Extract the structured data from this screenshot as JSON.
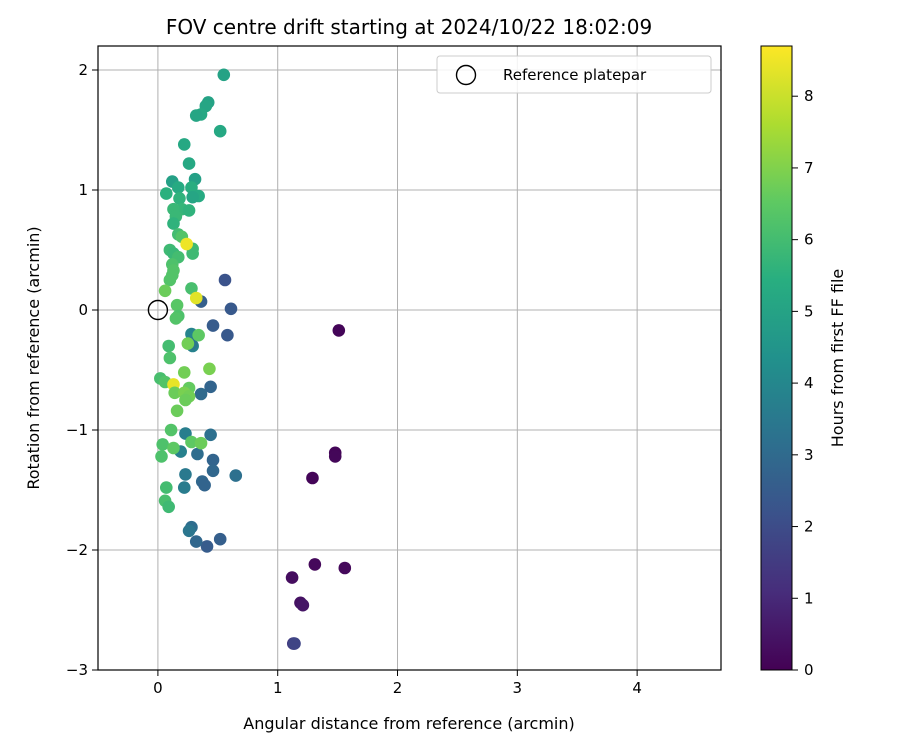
{
  "chart_data": {
    "type": "scatter",
    "title": "FOV centre drift starting at 2024/10/22 18:02:09",
    "xlabel": "Angular distance from reference (arcmin)",
    "ylabel": "Rotation from reference (arcmin)",
    "xlim": [
      -0.5,
      4.7
    ],
    "ylim": [
      -3.0,
      2.2
    ],
    "xticks": [
      0,
      1,
      2,
      3,
      4
    ],
    "xtick_labels": [
      "0",
      "1",
      "2",
      "3",
      "4"
    ],
    "yticks": [
      -3,
      -2,
      -1,
      0,
      1,
      2
    ],
    "ytick_labels": [
      "−3",
      "−2",
      "−1",
      "0",
      "1",
      "2"
    ],
    "grid": true,
    "legend": {
      "position": "top-right",
      "entries": [
        {
          "label": "Reference platepar",
          "marker": "open-circle"
        }
      ]
    },
    "reference_point": {
      "x": 0,
      "y": 0
    },
    "colorbar": {
      "label": "Hours from first FF file",
      "colormap": "viridis",
      "range": [
        0,
        8.7
      ],
      "ticks": [
        0,
        1,
        2,
        3,
        4,
        5,
        6,
        7,
        8
      ],
      "tick_labels": [
        "0",
        "1",
        "2",
        "3",
        "4",
        "5",
        "6",
        "7",
        "8"
      ]
    },
    "points": [
      {
        "x": 1.51,
        "y": -0.17,
        "c": 0.1
      },
      {
        "x": 1.48,
        "y": -1.19,
        "c": 0.1
      },
      {
        "x": 1.48,
        "y": -1.22,
        "c": 0.15
      },
      {
        "x": 1.29,
        "y": -1.4,
        "c": 0.1
      },
      {
        "x": 1.31,
        "y": -2.12,
        "c": 0.2
      },
      {
        "x": 1.56,
        "y": -2.15,
        "c": 0.2
      },
      {
        "x": 1.12,
        "y": -2.23,
        "c": 0.3
      },
      {
        "x": 1.19,
        "y": -2.44,
        "c": 0.4
      },
      {
        "x": 1.21,
        "y": -2.46,
        "c": 0.5
      },
      {
        "x": 1.13,
        "y": -2.78,
        "c": 1.5
      },
      {
        "x": 1.14,
        "y": -2.78,
        "c": 1.8
      },
      {
        "x": 0.56,
        "y": 0.25,
        "c": 2.2
      },
      {
        "x": 0.61,
        "y": 0.01,
        "c": 2.4
      },
      {
        "x": 0.46,
        "y": -0.13,
        "c": 2.5
      },
      {
        "x": 0.58,
        "y": -0.21,
        "c": 2.4
      },
      {
        "x": 0.36,
        "y": 0.07,
        "c": 2.6
      },
      {
        "x": 0.44,
        "y": -0.64,
        "c": 2.8
      },
      {
        "x": 0.36,
        "y": -0.7,
        "c": 3.0
      },
      {
        "x": 0.44,
        "y": -1.04,
        "c": 3.2
      },
      {
        "x": 0.46,
        "y": -1.25,
        "c": 2.8
      },
      {
        "x": 0.46,
        "y": -1.34,
        "c": 2.9
      },
      {
        "x": 0.65,
        "y": -1.38,
        "c": 3.2
      },
      {
        "x": 0.37,
        "y": -1.43,
        "c": 2.9
      },
      {
        "x": 0.39,
        "y": -1.46,
        "c": 2.8
      },
      {
        "x": 0.33,
        "y": -1.2,
        "c": 3.1
      },
      {
        "x": 0.52,
        "y": -1.91,
        "c": 2.6
      },
      {
        "x": 0.41,
        "y": -1.97,
        "c": 2.5
      },
      {
        "x": 0.32,
        "y": -1.93,
        "c": 2.9
      },
      {
        "x": 0.28,
        "y": -1.81,
        "c": 3.1
      },
      {
        "x": 0.26,
        "y": -1.84,
        "c": 3.4
      },
      {
        "x": 0.23,
        "y": -1.37,
        "c": 3.5
      },
      {
        "x": 0.22,
        "y": -1.48,
        "c": 3.6
      },
      {
        "x": 0.23,
        "y": -1.03,
        "c": 3.7
      },
      {
        "x": 0.19,
        "y": -1.18,
        "c": 3.8
      },
      {
        "x": 0.29,
        "y": -0.3,
        "c": 3.8
      },
      {
        "x": 0.28,
        "y": -0.2,
        "c": 3.9
      },
      {
        "x": 0.28,
        "y": -0.28,
        "c": 3.4
      },
      {
        "x": 0.55,
        "y": 1.96,
        "c": 5.0
      },
      {
        "x": 0.42,
        "y": 1.73,
        "c": 5.0
      },
      {
        "x": 0.4,
        "y": 1.7,
        "c": 5.1
      },
      {
        "x": 0.36,
        "y": 1.63,
        "c": 5.2
      },
      {
        "x": 0.32,
        "y": 1.62,
        "c": 5.1
      },
      {
        "x": 0.52,
        "y": 1.49,
        "c": 5.2
      },
      {
        "x": 0.22,
        "y": 1.38,
        "c": 5.2
      },
      {
        "x": 0.26,
        "y": 1.22,
        "c": 5.2
      },
      {
        "x": 0.31,
        "y": 1.09,
        "c": 4.9
      },
      {
        "x": 0.12,
        "y": 1.07,
        "c": 4.9
      },
      {
        "x": 0.17,
        "y": 1.02,
        "c": 5.3
      },
      {
        "x": 0.28,
        "y": 1.02,
        "c": 5.4
      },
      {
        "x": 0.07,
        "y": 0.97,
        "c": 5.5
      },
      {
        "x": 0.34,
        "y": 0.95,
        "c": 5.3
      },
      {
        "x": 0.29,
        "y": 0.94,
        "c": 5.1
      },
      {
        "x": 0.18,
        "y": 0.93,
        "c": 5.6
      },
      {
        "x": 0.2,
        "y": 0.84,
        "c": 5.7
      },
      {
        "x": 0.26,
        "y": 0.83,
        "c": 5.6
      },
      {
        "x": 0.13,
        "y": 0.84,
        "c": 5.8
      },
      {
        "x": 0.15,
        "y": 0.78,
        "c": 5.8
      },
      {
        "x": 0.13,
        "y": 0.72,
        "c": 5.6
      },
      {
        "x": 0.17,
        "y": 0.63,
        "c": 6.0
      },
      {
        "x": 0.2,
        "y": 0.61,
        "c": 6.3
      },
      {
        "x": 0.29,
        "y": 0.51,
        "c": 5.9
      },
      {
        "x": 0.29,
        "y": 0.47,
        "c": 5.9
      },
      {
        "x": 0.1,
        "y": 0.5,
        "c": 5.9
      },
      {
        "x": 0.13,
        "y": 0.47,
        "c": 5.8
      },
      {
        "x": 0.17,
        "y": 0.44,
        "c": 6.0
      },
      {
        "x": 0.12,
        "y": 0.38,
        "c": 6.2
      },
      {
        "x": 0.13,
        "y": 0.33,
        "c": 6.3
      },
      {
        "x": 0.12,
        "y": 0.29,
        "c": 6.3
      },
      {
        "x": 0.1,
        "y": 0.25,
        "c": 6.3
      },
      {
        "x": 0.06,
        "y": 0.16,
        "c": 6.7
      },
      {
        "x": 0.28,
        "y": 0.18,
        "c": 6.1
      },
      {
        "x": 0.24,
        "y": 0.55,
        "c": 8.5
      },
      {
        "x": 0.32,
        "y": 0.1,
        "c": 8.3
      },
      {
        "x": 0.16,
        "y": 0.04,
        "c": 6.4
      },
      {
        "x": 0.17,
        "y": -0.05,
        "c": 6.2
      },
      {
        "x": 0.15,
        "y": -0.07,
        "c": 6.3
      },
      {
        "x": 0.34,
        "y": -0.21,
        "c": 6.5
      },
      {
        "x": 0.25,
        "y": -0.28,
        "c": 6.8
      },
      {
        "x": 0.09,
        "y": -0.3,
        "c": 6.0
      },
      {
        "x": 0.1,
        "y": -0.4,
        "c": 6.2
      },
      {
        "x": 0.43,
        "y": -0.49,
        "c": 6.9
      },
      {
        "x": 0.22,
        "y": -0.52,
        "c": 6.8
      },
      {
        "x": 0.02,
        "y": -0.57,
        "c": 6.1
      },
      {
        "x": 0.06,
        "y": -0.6,
        "c": 6.3
      },
      {
        "x": 0.13,
        "y": -0.62,
        "c": 8.4
      },
      {
        "x": 0.26,
        "y": -0.65,
        "c": 6.6
      },
      {
        "x": 0.14,
        "y": -0.69,
        "c": 6.7
      },
      {
        "x": 0.22,
        "y": -0.69,
        "c": 6.9
      },
      {
        "x": 0.26,
        "y": -0.72,
        "c": 6.8
      },
      {
        "x": 0.23,
        "y": -0.75,
        "c": 6.7
      },
      {
        "x": 0.16,
        "y": -0.84,
        "c": 6.7
      },
      {
        "x": 0.11,
        "y": -1.0,
        "c": 6.3
      },
      {
        "x": 0.28,
        "y": -1.1,
        "c": 6.5
      },
      {
        "x": 0.36,
        "y": -1.11,
        "c": 6.7
      },
      {
        "x": 0.04,
        "y": -1.12,
        "c": 6.2
      },
      {
        "x": 0.13,
        "y": -1.15,
        "c": 6.5
      },
      {
        "x": 0.03,
        "y": -1.22,
        "c": 6.2
      },
      {
        "x": 0.07,
        "y": -1.48,
        "c": 6.0
      },
      {
        "x": 0.06,
        "y": -1.59,
        "c": 6.1
      },
      {
        "x": 0.09,
        "y": -1.64,
        "c": 5.9
      }
    ]
  }
}
